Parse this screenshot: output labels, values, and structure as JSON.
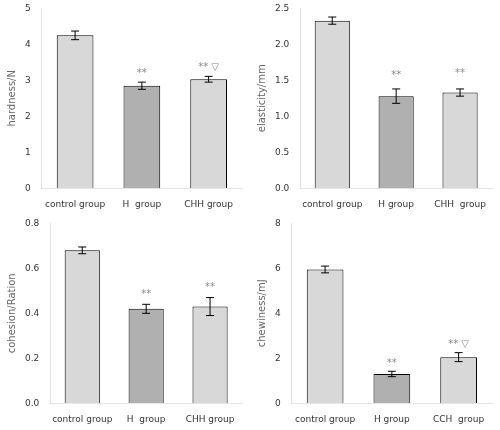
{
  "chart_data": [
    {
      "type": "bar",
      "ylabel": "hardness/N",
      "categories": [
        "control group",
        "H  group",
        "CHH group"
      ],
      "values": [
        4.25,
        2.85,
        3.03
      ],
      "errors": [
        0.12,
        0.1,
        0.08
      ],
      "colors": [
        "#d8d8d8",
        "#b0b0b0",
        "#d8d8d8"
      ],
      "ylim": [
        0,
        5
      ],
      "yticks": [
        0,
        1,
        2,
        3,
        4,
        5
      ],
      "grid": false,
      "annotations": [
        {
          "category": "H  group",
          "y": 3.05,
          "text": "**"
        },
        {
          "category": "CHH group",
          "y": 3.23,
          "text": "** ▽"
        }
      ]
    },
    {
      "type": "bar",
      "ylabel": "elasticity/mm",
      "categories": [
        "control group",
        "H group",
        "CHH  group"
      ],
      "values": [
        2.33,
        1.28,
        1.33
      ],
      "errors": [
        0.05,
        0.1,
        0.05
      ],
      "colors": [
        "#d8d8d8",
        "#b0b0b0",
        "#d8d8d8"
      ],
      "ylim": [
        0,
        2.5
      ],
      "yticks": [
        {
          "value": 0.0,
          "label": "0.0"
        },
        0.5,
        {
          "value": 1.0,
          "label": "1.0"
        },
        1.5,
        {
          "value": 2.0,
          "label": "2.0"
        },
        2.5
      ],
      "grid": false,
      "annotations": [
        {
          "category": "H group",
          "y": 1.5,
          "text": "**"
        },
        {
          "category": "CHH  group",
          "y": 1.52,
          "text": "**"
        }
      ]
    },
    {
      "type": "bar",
      "ylabel": "cohesion/Ration",
      "categories": [
        "control group",
        "H  group",
        "CHH group"
      ],
      "values": [
        0.68,
        0.42,
        0.43
      ],
      "errors": [
        0.015,
        0.02,
        0.04
      ],
      "colors": [
        "#d8d8d8",
        "#b0b0b0",
        "#d8d8d8"
      ],
      "ylim": [
        0,
        0.8
      ],
      "yticks": [
        {
          "value": 0.0,
          "label": "0.0"
        },
        0.2,
        0.4,
        0.6,
        0.8
      ],
      "grid": false,
      "annotations": [
        {
          "category": "H  group",
          "y": 0.46,
          "text": "**"
        },
        {
          "category": "CHH group",
          "y": 0.495,
          "text": "**"
        }
      ]
    },
    {
      "type": "bar",
      "ylabel": "chewiness/mJ",
      "categories": [
        "control group",
        "H group",
        "CCH  group"
      ],
      "values": [
        5.95,
        1.3,
        2.05
      ],
      "errors": [
        0.15,
        0.12,
        0.2
      ],
      "colors": [
        "#d8d8d8",
        "#b0b0b0",
        "#d8d8d8"
      ],
      "ylim": [
        0,
        8
      ],
      "yticks": [
        0,
        2,
        4,
        6,
        8
      ],
      "grid": false,
      "annotations": [
        {
          "category": "H group",
          "y": 1.55,
          "text": "**"
        },
        {
          "category": "CCH  group",
          "y": 2.4,
          "text": "** ▽"
        }
      ]
    }
  ]
}
